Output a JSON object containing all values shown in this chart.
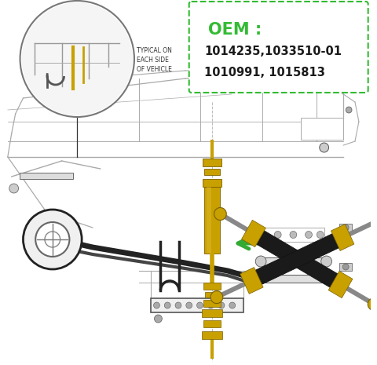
{
  "bg": "#ffffff",
  "oem_label": "OEM :",
  "oem_color": "#33bb33",
  "oem_line1": "1014235,1033510-01",
  "oem_line2": "1010991, 1015813",
  "oem_text_color": "#1a1a1a",
  "box_color": "#33bb33",
  "line_color": "#aaaaaa",
  "dark_line": "#555555",
  "black_part": "#222222",
  "gold": "#c8a000",
  "gold_dark": "#7a6000",
  "arrow_color": "#33aa33",
  "typical_text": "TYPICAL ON\nEACH SIDE\nOF VEHICLE"
}
